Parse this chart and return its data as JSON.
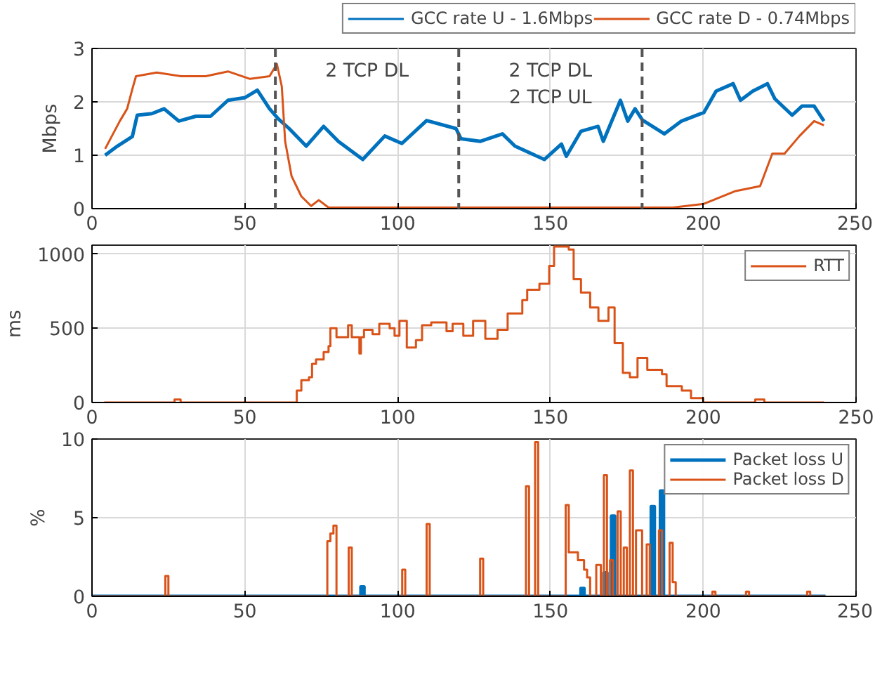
{
  "chart_data": [
    {
      "type": "line",
      "ylabel": "Mbps",
      "xlim": [
        0,
        250
      ],
      "ylim": [
        0,
        3
      ],
      "xticks": [
        0,
        50,
        100,
        150,
        200,
        250
      ],
      "yticks": [
        0,
        1,
        2,
        3
      ],
      "grid": true,
      "legend": "top",
      "series": [
        {
          "name": "GCC rate U - 1.6Mbps",
          "color": "#0072bd",
          "x": [
            4.3,
            8.3,
            13.2,
            14.8,
            19.6,
            23.6,
            28.4,
            34,
            38.8,
            44.5,
            50.1,
            54.1,
            58.1,
            61,
            64.5,
            70.1,
            75.8,
            80.6,
            88.6,
            95.8,
            101.4,
            109.5,
            119.1,
            120.7,
            127.1,
            134.3,
            138.4,
            148,
            153.6,
            155.2,
            160,
            165.6,
            167.3,
            172.9,
            175.3,
            177.7,
            180.1,
            187.3,
            192.9,
            200.2,
            204.2,
            209.8,
            212.2,
            216.2,
            221,
            223.4,
            229.1,
            232.3,
            236.3,
            239.5
          ],
          "values": [
            1.0,
            1.17,
            1.35,
            1.75,
            1.78,
            1.87,
            1.64,
            1.73,
            1.73,
            2.03,
            2.08,
            2.22,
            1.87,
            1.68,
            1.5,
            1.17,
            1.54,
            1.26,
            0.92,
            1.36,
            1.22,
            1.65,
            1.5,
            1.31,
            1.26,
            1.4,
            1.17,
            0.92,
            1.21,
            0.98,
            1.45,
            1.54,
            1.26,
            2.03,
            1.64,
            1.87,
            1.66,
            1.4,
            1.64,
            1.8,
            2.2,
            2.34,
            2.03,
            2.2,
            2.34,
            2.06,
            1.75,
            1.92,
            1.92,
            1.64
          ]
        },
        {
          "name": "GCC rate D - 0.74Mbps",
          "color": "#d95319",
          "x": [
            4.3,
            9.1,
            11.5,
            13.2,
            14.4,
            21.2,
            29.2,
            37.2,
            44.5,
            51.7,
            58.1,
            60.5,
            62.1,
            63.2,
            65.3,
            68.5,
            71.7,
            74.2,
            77.4,
            190,
            200.2,
            210.6,
            218.6,
            222.6,
            226.6,
            231.5,
            236.3,
            239.5
          ],
          "values": [
            1.12,
            1.64,
            1.87,
            2.24,
            2.48,
            2.55,
            2.48,
            2.48,
            2.57,
            2.43,
            2.48,
            2.71,
            2.29,
            1.26,
            0.61,
            0.23,
            0.05,
            0.16,
            0.02,
            0.02,
            0.09,
            0.33,
            0.42,
            1.03,
            1.03,
            1.36,
            1.64,
            1.56
          ]
        }
      ],
      "ref_lines": [
        {
          "axis": "x",
          "value": 60,
          "color": "#555555",
          "line_style": "dashed"
        },
        {
          "axis": "x",
          "value": 120,
          "color": "#555555",
          "line_style": "dashed"
        },
        {
          "axis": "x",
          "value": 180,
          "color": "#555555",
          "line_style": "dashed"
        }
      ],
      "annotations": [
        "2 TCP DL",
        "2 TCP DL\n2 TCP UL"
      ]
    },
    {
      "type": "step",
      "ylabel": "ms",
      "xlim": [
        0,
        250
      ],
      "ylim": [
        0,
        1060
      ],
      "xticks": [
        0,
        50,
        100,
        150,
        200,
        250
      ],
      "yticks": [
        0,
        500,
        1000
      ],
      "grid": true,
      "legend": "top right",
      "series": [
        {
          "name": "RTT",
          "color": "#d95319",
          "x": [
            4,
            27,
            29,
            63,
            64.5,
            67,
            68.5,
            71,
            72,
            73.3,
            75.8,
            77.4,
            78,
            80,
            83.8,
            85,
            87.5,
            88,
            89,
            91.8,
            94,
            97.4,
            99,
            100.6,
            103,
            106,
            108,
            111,
            116,
            118,
            121.5,
            124.7,
            128.7,
            132.7,
            136,
            140.8,
            142.4,
            146.4,
            149.6,
            151.2,
            156,
            157.6,
            160,
            163,
            165.7,
            169,
            171,
            173.7,
            176,
            178.5,
            181.7,
            186.5,
            188,
            193,
            196,
            200,
            217,
            220,
            239.5
          ],
          "values": [
            0,
            20,
            0,
            0,
            0,
            80,
            150,
            170,
            260,
            290,
            340,
            380,
            500,
            440,
            520,
            440,
            330,
            440,
            490,
            460,
            530,
            500,
            450,
            550,
            370,
            420,
            520,
            540,
            480,
            530,
            450,
            550,
            430,
            490,
            600,
            690,
            760,
            800,
            920,
            1050,
            1030,
            830,
            740,
            640,
            550,
            640,
            400,
            200,
            170,
            300,
            220,
            190,
            110,
            80,
            30,
            0,
            20,
            0,
            0
          ]
        }
      ]
    },
    {
      "type": "step",
      "ylabel": "%",
      "xlim": [
        0,
        250
      ],
      "ylim": [
        0,
        10
      ],
      "xticks": [
        0,
        50,
        100,
        150,
        200,
        250
      ],
      "yticks": [
        0,
        5,
        10
      ],
      "grid": true,
      "legend": "top right",
      "series": [
        {
          "name": "Packet loss U",
          "color": "#0072bd",
          "x": [
            0,
            88,
            89,
            160,
            161,
            167.5,
            168.5,
            170,
            171,
            183,
            184,
            186,
            187,
            240
          ],
          "values": [
            0,
            0.6,
            0,
            0.5,
            0,
            1.5,
            0,
            5.1,
            0,
            5.7,
            0,
            6.7,
            0,
            0
          ]
        },
        {
          "name": "Packet loss D",
          "color": "#d95319",
          "x": [
            0,
            24,
            25,
            77,
            78,
            79,
            80,
            84,
            85,
            101.5,
            102.5,
            109.5,
            110.5,
            127,
            128,
            142,
            143,
            145,
            146,
            155,
            156,
            159,
            161,
            162,
            163,
            165,
            166.5,
            167.5,
            168.5,
            169.5,
            170.5,
            172,
            173,
            174,
            175,
            176,
            177,
            178,
            180,
            181.5,
            182.5,
            185.5,
            186.5,
            189,
            190,
            191,
            203,
            204,
            214,
            215,
            234,
            235,
            240
          ],
          "values": [
            0,
            1.3,
            0,
            3.5,
            4.0,
            4.5,
            0,
            3.1,
            0,
            1.7,
            0,
            4.6,
            0,
            2.4,
            0,
            7.0,
            0,
            9.8,
            0,
            5.8,
            2.8,
            2.3,
            1.7,
            1.2,
            0,
            2.0,
            0,
            7.7,
            0,
            2.3,
            0,
            5.4,
            0,
            3.1,
            0,
            8.0,
            0,
            4.2,
            0,
            3.3,
            0,
            4.2,
            0,
            3.4,
            0.9,
            0,
            0.3,
            0,
            0.3,
            0,
            0.3,
            0,
            0
          ]
        }
      ]
    }
  ]
}
